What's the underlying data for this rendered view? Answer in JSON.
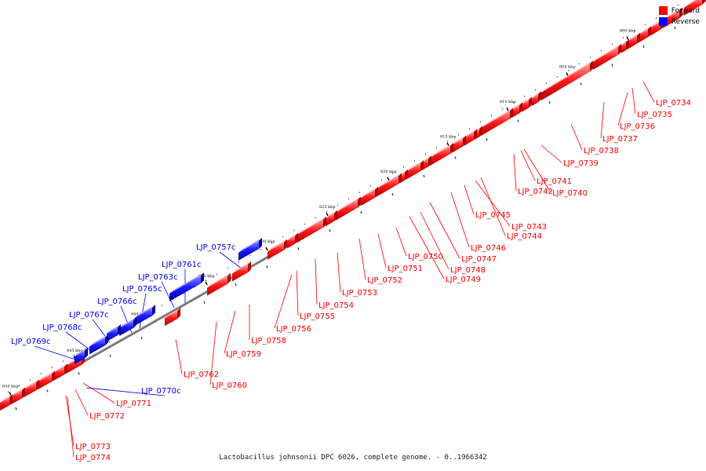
{
  "legend": [
    {
      "label": "Forward",
      "color": "#ff0000"
    },
    {
      "label": "Reverse",
      "color": "#0000ff"
    }
  ],
  "caption": "Lactobacillus johnsonii DPC 6026, complete genome. - 0..1966342",
  "ticks": [
    "800 kbp",
    "805 kbp",
    "810 kbp",
    "815 kbp",
    "820 kbp",
    "825 kbp",
    "830 kbp",
    "835 kbp",
    "840 kbp",
    "845 kbp",
    "850 kbp"
  ],
  "forward_labels": [
    "LJP_0734",
    "LJP_0735",
    "LJP_0736",
    "LJP_0737",
    "LJP_0738",
    "LJP_0739",
    "LJP_0741",
    "LJP_0742",
    "LJP_0740",
    "LJP_0745",
    "LJP_0743",
    "LJP_0744",
    "LJP_0746",
    "LJP_0747",
    "LJP_0748",
    "LJP_0749",
    "LJP_0750",
    "LJP_0751",
    "LJP_0752",
    "LJP_0753",
    "LJP_0754",
    "LJP_0755",
    "LJP_0756",
    "LJP_0758",
    "LJP_0759",
    "LJP_0760",
    "LJP_0762",
    "LJP_0771",
    "LJP_0772",
    "LJP_0773",
    "LJP_0774"
  ],
  "reverse_labels": [
    "LJP_0757c",
    "LJP_0761c",
    "LJP_0763c",
    "LJP_0765c",
    "LJP_0766c",
    "LJP_0767c",
    "LJP_0768c",
    "LJP_0769c",
    "LJP_0770c"
  ],
  "colors": {
    "forward": "#ff0000",
    "reverse": "#0000ff",
    "backbone": "#888888"
  }
}
